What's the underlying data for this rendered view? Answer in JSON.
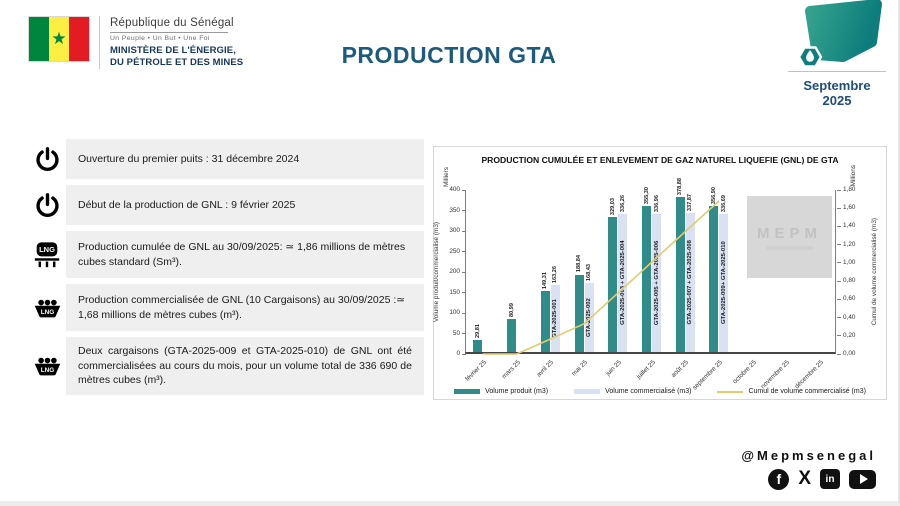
{
  "header": {
    "republic": "République du Sénégal",
    "motto": "Un Peuple • Un But • Une Foi",
    "ministry_line1": "MINISTÈRE DE L'ÉNERGIE,",
    "ministry_line2": "DU PÉTROLE ET DES MINES",
    "title": "PRODUCTION GTA",
    "date": "Septembre 2025"
  },
  "bullets": [
    {
      "icon": "power-icon",
      "text": "Ouverture du premier puits : 31 décembre 2024"
    },
    {
      "icon": "power-icon",
      "text": "Début de la production de GNL : 9 février 2025"
    },
    {
      "icon": "lng-tank-icon",
      "text": "Production cumulée de GNL au 30/09/2025: ≃ 1,86 millions de mètres cubes standard (Sm³)."
    },
    {
      "icon": "lng-carrier-icon",
      "text": "Production commercialisée de GNL (10 Cargaisons) au 30/09/2025 :≃ 1,68 millions de mètres cubes (m³)."
    },
    {
      "icon": "lng-carrier-icon",
      "text": "Deux cargaisons (GTA-2025-009 et GTA-2025-010) de GNL ont été commercialisées au cours du mois, pour un volume total de 336 690 de mètres cubes (m³)."
    }
  ],
  "chart_data": {
    "type": "bar+line-combo",
    "title": "PRODUCTION CUMULÉE ET ENLEVEMENT DE GAZ NATUREL LIQUEFIE (GNL) DE GTA",
    "categories": [
      "février 25",
      "mars 25",
      "avril 25",
      "mai 25",
      "juin 25",
      "juillet 25",
      "août 25",
      "septembre 25",
      "octobre 25",
      "novembre 25",
      "décembre 25"
    ],
    "left_axis": {
      "label": "Volume produit/commercialisé (m3)",
      "unit": "Milliers",
      "min": 0,
      "max": 400,
      "step": 50
    },
    "right_axis": {
      "label": "Cumul de volume commercialisé (m3)",
      "unit": "Millions",
      "min": 0,
      "max": 1.8,
      "tick_labels": [
        "0,00",
        "0,20",
        "0,40",
        "0,60",
        "0,80",
        "1,00",
        "1,20",
        "1,40",
        "1,60",
        "1,80"
      ]
    },
    "series": [
      {
        "name": "Volume produit (m3)",
        "type": "bar",
        "color": "#2F8C88",
        "values": [
          29.81,
          80.99,
          149.31,
          188.84,
          329.03,
          355.3,
          378.88,
          356.9,
          null,
          null,
          null
        ],
        "labels": [
          "29,81",
          "80,99",
          "149,31",
          "188,84",
          "329,03",
          "355,30",
          "378,88",
          "356,90",
          null,
          null,
          null
        ]
      },
      {
        "name": "Volume commercialisé (m3)",
        "type": "bar",
        "color": "#D9E1F2",
        "values": [
          null,
          null,
          163.26,
          168.43,
          336.26,
          336.96,
          337.87,
          336.69,
          null,
          null,
          null
        ],
        "labels": [
          null,
          null,
          "163,26",
          "168,43",
          "336,26",
          "336,96",
          "337,87",
          "336,69",
          null,
          null,
          null
        ]
      },
      {
        "name": "Cumul de volume commercialisé (m3)",
        "type": "line",
        "axis": "right",
        "color": "#E0CC6E",
        "values": [
          0,
          0,
          0.163,
          0.332,
          0.668,
          1.005,
          1.343,
          1.679,
          null,
          null,
          null
        ]
      }
    ],
    "cargo_labels": [
      null,
      null,
      "GTA-2025-001",
      "GTA-2025-002",
      "GTA-2025-003 + GTA-2025-004",
      "GTA-2025-005 + GTA-2025-006",
      "GTA-2025-007 + GTA-2025-008",
      "GTA-2025-009+ GTA-2025-010",
      null,
      null,
      null
    ],
    "watermark": "MEPM",
    "legend_position": "bottom",
    "grid": false
  },
  "footer": {
    "handle": "@Mepmsenegal",
    "social": [
      "facebook-icon",
      "x-icon",
      "linkedin-icon",
      "youtube-icon"
    ]
  },
  "colors": {
    "title_blue": "#1D5B7E",
    "date_blue": "#1F4E79",
    "bar_produced": "#2F8C88",
    "bar_commercial": "#D9E1F2",
    "line_cumul": "#E0CC6E",
    "bullet_bg": "#EFEFEF",
    "flag_green": "#00853F",
    "flag_yellow": "#FDEF42",
    "flag_red": "#E31B23"
  }
}
